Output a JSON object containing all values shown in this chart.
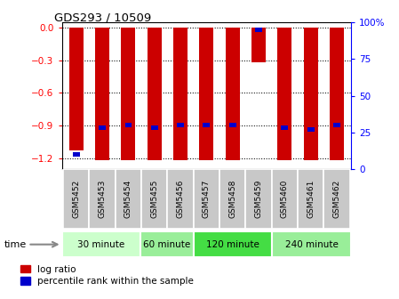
{
  "title": "GDS293 / 10509",
  "samples": [
    "GSM5452",
    "GSM5453",
    "GSM5454",
    "GSM5455",
    "GSM5456",
    "GSM5457",
    "GSM5458",
    "GSM5459",
    "GSM5460",
    "GSM5461",
    "GSM5462"
  ],
  "log_ratios": [
    -1.13,
    -1.22,
    -1.22,
    -1.22,
    -1.22,
    -1.22,
    -1.22,
    -0.32,
    -1.22,
    -1.22,
    -1.22
  ],
  "percentile_ranks": [
    10,
    28,
    30,
    28,
    30,
    30,
    30,
    95,
    28,
    27,
    30
  ],
  "groups": [
    {
      "label": "30 minute",
      "start": 0,
      "end": 3,
      "color": "#ccffcc"
    },
    {
      "label": "60 minute",
      "start": 3,
      "end": 5,
      "color": "#99ee99"
    },
    {
      "label": "120 minute",
      "start": 5,
      "end": 8,
      "color": "#44dd44"
    },
    {
      "label": "240 minute",
      "start": 8,
      "end": 11,
      "color": "#99ee99"
    }
  ],
  "ylim_left": [
    -1.3,
    0.05
  ],
  "ylim_right": [
    0,
    100
  ],
  "yticks_left": [
    0,
    -0.3,
    -0.6,
    -0.9,
    -1.2
  ],
  "yticks_right": [
    0,
    25,
    50,
    75,
    100
  ],
  "bar_color_red": "#cc0000",
  "bar_color_blue": "#0000cc",
  "bg_color": "#ffffff",
  "bar_width": 0.55,
  "legend_red_label": "log ratio",
  "legend_blue_label": "percentile rank within the sample",
  "cell_color": "#c8c8c8"
}
